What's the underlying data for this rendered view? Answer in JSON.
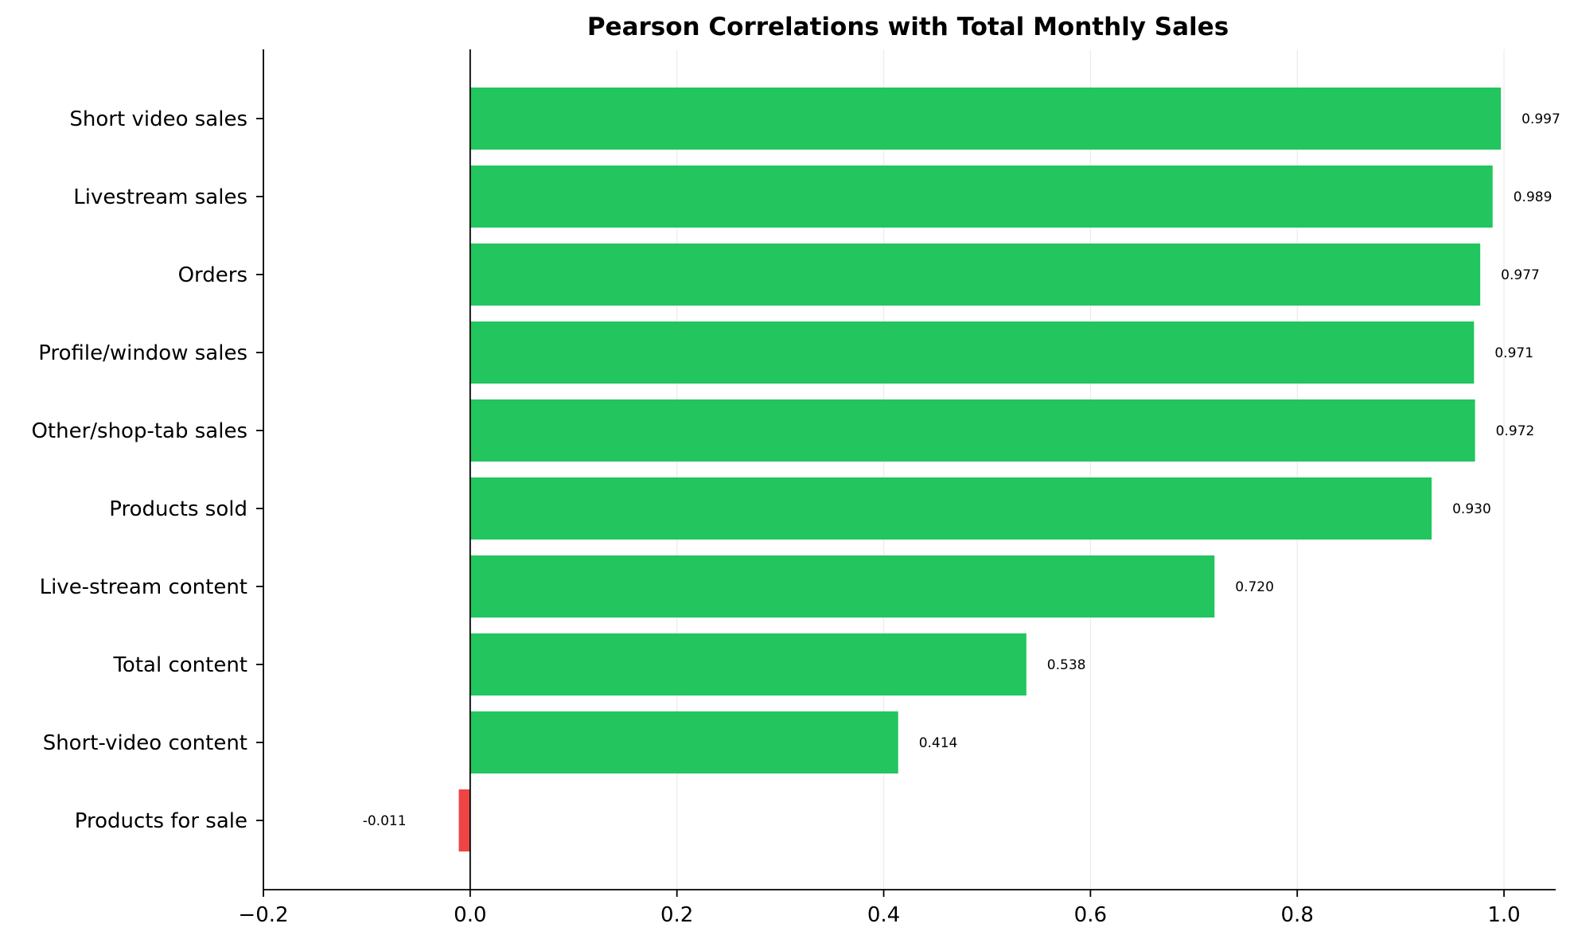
{
  "chart_data": {
    "type": "bar",
    "orientation": "horizontal",
    "title": "Pearson Correlations with Total Monthly Sales",
    "xlabel": "",
    "ylabel": "",
    "xlim": [
      -0.2,
      1.05
    ],
    "xticks": [
      -0.2,
      0.0,
      0.2,
      0.4,
      0.6,
      0.8,
      1.0
    ],
    "xtick_labels": [
      "−0.2",
      "0.0",
      "0.2",
      "0.4",
      "0.6",
      "0.8",
      "1.0"
    ],
    "grid": "vertical",
    "categories": [
      "Short video sales",
      "Livestream sales",
      "Orders",
      "Profile/window sales",
      "Other/shop-tab sales",
      "Products sold",
      "Live-stream content",
      "Total content",
      "Short-video content",
      "Products for sale"
    ],
    "values": [
      0.997,
      0.989,
      0.977,
      0.971,
      0.972,
      0.93,
      0.72,
      0.538,
      0.414,
      -0.011
    ],
    "value_labels": [
      "0.997",
      "0.989",
      "0.977",
      "0.971",
      "0.972",
      "0.930",
      "0.720",
      "0.538",
      "0.414",
      "-0.011"
    ],
    "colors": {
      "positive": "#22c55e",
      "negative": "#ef4444"
    }
  }
}
